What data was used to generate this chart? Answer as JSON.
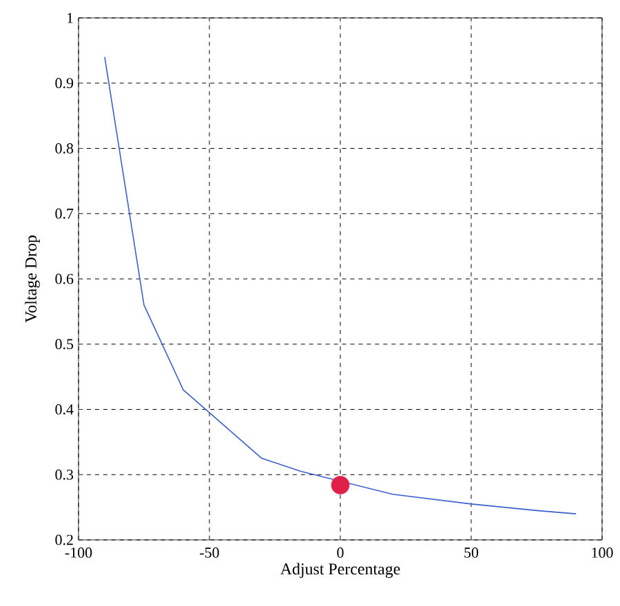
{
  "chart_data": {
    "type": "line",
    "xlabel": "Adjust Percentage",
    "ylabel": "Voltage Drop",
    "xlim": [
      -100,
      100
    ],
    "ylim": [
      0.2,
      1
    ],
    "xticks": [
      -100,
      -50,
      0,
      50,
      100
    ],
    "yticks": [
      0.2,
      0.3,
      0.4,
      0.5,
      0.6,
      0.7,
      0.8,
      0.9,
      1
    ],
    "grid": true,
    "series": [
      {
        "color": "#3a5fcd",
        "x": [
          -90,
          -75,
          -60,
          -50,
          -40,
          -30,
          -15,
          0,
          20,
          50,
          75,
          90
        ],
        "values": [
          0.94,
          0.56,
          0.43,
          0.395,
          0.36,
          0.325,
          0.305,
          null,
          0.27,
          0.255,
          0.245,
          0.24
        ]
      },
      {
        "type": "scatter",
        "marker": "circle",
        "color": "#e0204a",
        "x": [
          0
        ],
        "values": [
          0.284
        ]
      }
    ]
  }
}
